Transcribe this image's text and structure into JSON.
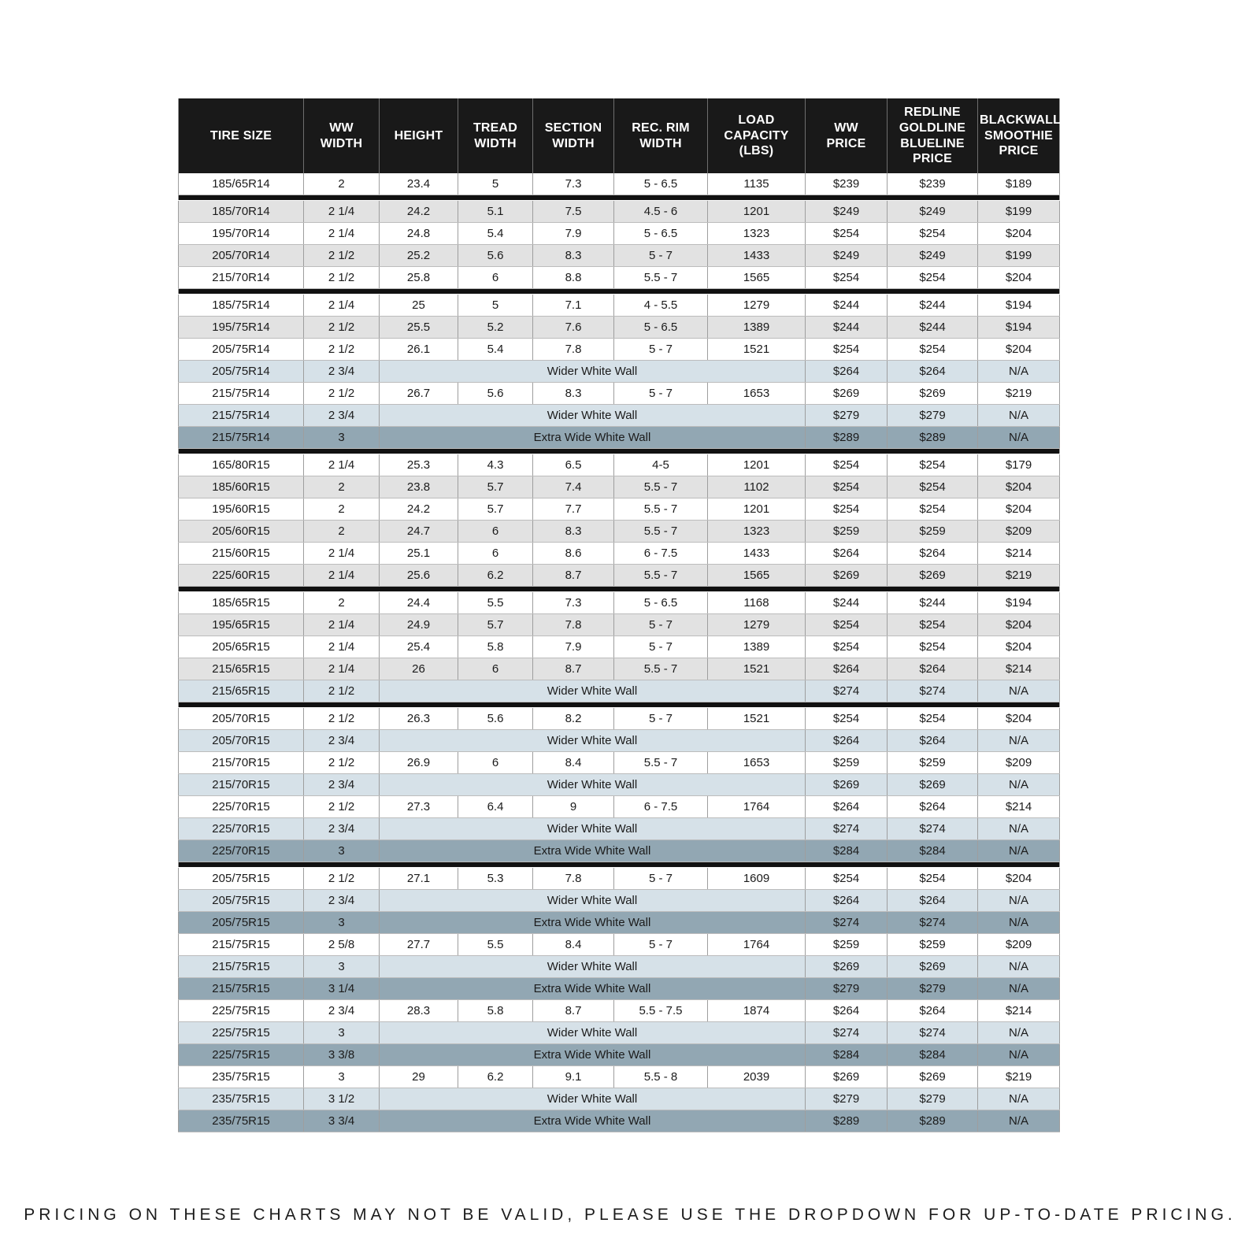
{
  "colors": {
    "header_bg": "#191919",
    "header_text": "#ffffff",
    "row_white": "#ffffff",
    "row_gray": "#e2e2e2",
    "row_wider_white_wall": "#d6e1e8",
    "row_extra_wide_white_wall": "#92a7b3",
    "section_divider": "#111111",
    "grid_line": "#9e9e9e"
  },
  "footer": {
    "note": "PRICING ON THESE CHARTS MAY NOT BE VALID, PLEASE USE THE DROPDOWN FOR UP-TO-DATE PRICING."
  },
  "table": {
    "columns": [
      {
        "id": "tire-size",
        "lines": [
          "TIRE SIZE"
        ]
      },
      {
        "id": "ww-width",
        "lines": [
          "WW",
          "WIDTH"
        ]
      },
      {
        "id": "height",
        "lines": [
          "HEIGHT"
        ]
      },
      {
        "id": "tread-width",
        "lines": [
          "TREAD",
          "WIDTH"
        ]
      },
      {
        "id": "section-width",
        "lines": [
          "SECTION",
          "WIDTH"
        ]
      },
      {
        "id": "rec-rim-width",
        "lines": [
          "REC. RIM",
          "WIDTH"
        ]
      },
      {
        "id": "load-capacity",
        "lines": [
          "LOAD",
          "CAPACITY",
          "(LBS)"
        ]
      },
      {
        "id": "ww-price",
        "lines": [
          "WW",
          "PRICE"
        ]
      },
      {
        "id": "redline-price",
        "lines": [
          "REDLINE",
          "GOLDLINE",
          "BLUELINE",
          "PRICE"
        ]
      },
      {
        "id": "blackwall-price",
        "lines": [
          "BLACKWALL",
          "SMOOTHIE",
          "PRICE"
        ]
      }
    ],
    "sections": [
      {
        "rows": [
          {
            "shade": "white",
            "tire_size": "185/65R14",
            "ww_width": "2",
            "height": "23.4",
            "tread_width": "5",
            "section_width": "7.3",
            "rec_rim_width": "5 - 6.5",
            "load_capacity": "1135",
            "ww_price": "$239",
            "redline_price": "$239",
            "blackwall_price": "$189"
          }
        ]
      },
      {
        "rows": [
          {
            "shade": "gray",
            "tire_size": "185/70R14",
            "ww_width": "2 1/4",
            "height": "24.2",
            "tread_width": "5.1",
            "section_width": "7.5",
            "rec_rim_width": "4.5 - 6",
            "load_capacity": "1201",
            "ww_price": "$249",
            "redline_price": "$249",
            "blackwall_price": "$199"
          },
          {
            "shade": "white",
            "tire_size": "195/70R14",
            "ww_width": "2 1/4",
            "height": "24.8",
            "tread_width": "5.4",
            "section_width": "7.9",
            "rec_rim_width": "5 - 6.5",
            "load_capacity": "1323",
            "ww_price": "$254",
            "redline_price": "$254",
            "blackwall_price": "$204"
          },
          {
            "shade": "gray",
            "tire_size": "205/70R14",
            "ww_width": "2 1/2",
            "height": "25.2",
            "tread_width": "5.6",
            "section_width": "8.3",
            "rec_rim_width": "5 - 7",
            "load_capacity": "1433",
            "ww_price": "$249",
            "redline_price": "$249",
            "blackwall_price": "$199"
          },
          {
            "shade": "white",
            "tire_size": "215/70R14",
            "ww_width": "2 1/2",
            "height": "25.8",
            "tread_width": "6",
            "section_width": "8.8",
            "rec_rim_width": "5.5 - 7",
            "load_capacity": "1565",
            "ww_price": "$254",
            "redline_price": "$254",
            "blackwall_price": "$204"
          }
        ]
      },
      {
        "rows": [
          {
            "shade": "white",
            "tire_size": "185/75R14",
            "ww_width": "2 1/4",
            "height": "25",
            "tread_width": "5",
            "section_width": "7.1",
            "rec_rim_width": "4 - 5.5",
            "load_capacity": "1279",
            "ww_price": "$244",
            "redline_price": "$244",
            "blackwall_price": "$194"
          },
          {
            "shade": "gray",
            "tire_size": "195/75R14",
            "ww_width": "2 1/2",
            "height": "25.5",
            "tread_width": "5.2",
            "section_width": "7.6",
            "rec_rim_width": "5 - 6.5",
            "load_capacity": "1389",
            "ww_price": "$244",
            "redline_price": "$244",
            "blackwall_price": "$194"
          },
          {
            "shade": "white",
            "tire_size": "205/75R14",
            "ww_width": "2 1/2",
            "height": "26.1",
            "tread_width": "5.4",
            "section_width": "7.8",
            "rec_rim_width": "5 - 7",
            "load_capacity": "1521",
            "ww_price": "$254",
            "redline_price": "$254",
            "blackwall_price": "$204"
          },
          {
            "shade": "wide",
            "tire_size": "205/75R14",
            "ww_width": "2 3/4",
            "label": "Wider White Wall",
            "ww_price": "$264",
            "redline_price": "$264",
            "blackwall_price": "N/A"
          },
          {
            "shade": "white",
            "tire_size": "215/75R14",
            "ww_width": "2 1/2",
            "height": "26.7",
            "tread_width": "5.6",
            "section_width": "8.3",
            "rec_rim_width": "5 - 7",
            "load_capacity": "1653",
            "ww_price": "$269",
            "redline_price": "$269",
            "blackwall_price": "$219"
          },
          {
            "shade": "wide",
            "tire_size": "215/75R14",
            "ww_width": "2 3/4",
            "label": "Wider White Wall",
            "ww_price": "$279",
            "redline_price": "$279",
            "blackwall_price": "N/A"
          },
          {
            "shade": "xwide",
            "tire_size": "215/75R14",
            "ww_width": "3",
            "label": "Extra Wide White Wall",
            "ww_price": "$289",
            "redline_price": "$289",
            "blackwall_price": "N/A"
          }
        ]
      },
      {
        "rows": [
          {
            "shade": "white",
            "tire_size": "165/80R15",
            "ww_width": "2 1/4",
            "height": "25.3",
            "tread_width": "4.3",
            "section_width": "6.5",
            "rec_rim_width": "4-5",
            "load_capacity": "1201",
            "ww_price": "$254",
            "redline_price": "$254",
            "blackwall_price": "$179"
          },
          {
            "shade": "gray",
            "tire_size": "185/60R15",
            "ww_width": "2",
            "height": "23.8",
            "tread_width": "5.7",
            "section_width": "7.4",
            "rec_rim_width": "5.5 - 7",
            "load_capacity": "1102",
            "ww_price": "$254",
            "redline_price": "$254",
            "blackwall_price": "$204"
          },
          {
            "shade": "white",
            "tire_size": "195/60R15",
            "ww_width": "2",
            "height": "24.2",
            "tread_width": "5.7",
            "section_width": "7.7",
            "rec_rim_width": "5.5 - 7",
            "load_capacity": "1201",
            "ww_price": "$254",
            "redline_price": "$254",
            "blackwall_price": "$204"
          },
          {
            "shade": "gray",
            "tire_size": "205/60R15",
            "ww_width": "2",
            "height": "24.7",
            "tread_width": "6",
            "section_width": "8.3",
            "rec_rim_width": "5.5 - 7",
            "load_capacity": "1323",
            "ww_price": "$259",
            "redline_price": "$259",
            "blackwall_price": "$209"
          },
          {
            "shade": "white",
            "tire_size": "215/60R15",
            "ww_width": "2 1/4",
            "height": "25.1",
            "tread_width": "6",
            "section_width": "8.6",
            "rec_rim_width": "6 - 7.5",
            "load_capacity": "1433",
            "ww_price": "$264",
            "redline_price": "$264",
            "blackwall_price": "$214"
          },
          {
            "shade": "gray",
            "tire_size": "225/60R15",
            "ww_width": "2 1/4",
            "height": "25.6",
            "tread_width": "6.2",
            "section_width": "8.7",
            "rec_rim_width": "5.5 - 7",
            "load_capacity": "1565",
            "ww_price": "$269",
            "redline_price": "$269",
            "blackwall_price": "$219"
          }
        ]
      },
      {
        "rows": [
          {
            "shade": "white",
            "tire_size": "185/65R15",
            "ww_width": "2",
            "height": "24.4",
            "tread_width": "5.5",
            "section_width": "7.3",
            "rec_rim_width": "5 - 6.5",
            "load_capacity": "1168",
            "ww_price": "$244",
            "redline_price": "$244",
            "blackwall_price": "$194"
          },
          {
            "shade": "gray",
            "tire_size": "195/65R15",
            "ww_width": "2 1/4",
            "height": "24.9",
            "tread_width": "5.7",
            "section_width": "7.8",
            "rec_rim_width": "5 - 7",
            "load_capacity": "1279",
            "ww_price": "$254",
            "redline_price": "$254",
            "blackwall_price": "$204"
          },
          {
            "shade": "white",
            "tire_size": "205/65R15",
            "ww_width": "2 1/4",
            "height": "25.4",
            "tread_width": "5.8",
            "section_width": "7.9",
            "rec_rim_width": "5 - 7",
            "load_capacity": "1389",
            "ww_price": "$254",
            "redline_price": "$254",
            "blackwall_price": "$204"
          },
          {
            "shade": "gray",
            "tire_size": "215/65R15",
            "ww_width": "2 1/4",
            "height": "26",
            "tread_width": "6",
            "section_width": "8.7",
            "rec_rim_width": "5.5 - 7",
            "load_capacity": "1521",
            "ww_price": "$264",
            "redline_price": "$264",
            "blackwall_price": "$214"
          },
          {
            "shade": "wide",
            "tire_size": "215/65R15",
            "ww_width": "2 1/2",
            "label": "Wider White Wall",
            "ww_price": "$274",
            "redline_price": "$274",
            "blackwall_price": "N/A"
          }
        ]
      },
      {
        "rows": [
          {
            "shade": "white",
            "tire_size": "205/70R15",
            "ww_width": "2 1/2",
            "height": "26.3",
            "tread_width": "5.6",
            "section_width": "8.2",
            "rec_rim_width": "5 - 7",
            "load_capacity": "1521",
            "ww_price": "$254",
            "redline_price": "$254",
            "blackwall_price": "$204"
          },
          {
            "shade": "wide",
            "tire_size": "205/70R15",
            "ww_width": "2 3/4",
            "label": "Wider White Wall",
            "ww_price": "$264",
            "redline_price": "$264",
            "blackwall_price": "N/A"
          },
          {
            "shade": "white",
            "tire_size": "215/70R15",
            "ww_width": "2 1/2",
            "height": "26.9",
            "tread_width": "6",
            "section_width": "8.4",
            "rec_rim_width": "5.5 - 7",
            "load_capacity": "1653",
            "ww_price": "$259",
            "redline_price": "$259",
            "blackwall_price": "$209"
          },
          {
            "shade": "wide",
            "tire_size": "215/70R15",
            "ww_width": "2 3/4",
            "label": "Wider White Wall",
            "ww_price": "$269",
            "redline_price": "$269",
            "blackwall_price": "N/A"
          },
          {
            "shade": "white",
            "tire_size": "225/70R15",
            "ww_width": "2 1/2",
            "height": "27.3",
            "tread_width": "6.4",
            "section_width": "9",
            "rec_rim_width": "6 - 7.5",
            "load_capacity": "1764",
            "ww_price": "$264",
            "redline_price": "$264",
            "blackwall_price": "$214"
          },
          {
            "shade": "wide",
            "tire_size": "225/70R15",
            "ww_width": "2 3/4",
            "label": "Wider White Wall",
            "ww_price": "$274",
            "redline_price": "$274",
            "blackwall_price": "N/A"
          },
          {
            "shade": "xwide",
            "tire_size": "225/70R15",
            "ww_width": "3",
            "label": "Extra Wide White Wall",
            "ww_price": "$284",
            "redline_price": "$284",
            "blackwall_price": "N/A"
          }
        ]
      },
      {
        "rows": [
          {
            "shade": "white",
            "tire_size": "205/75R15",
            "ww_width": "2 1/2",
            "height": "27.1",
            "tread_width": "5.3",
            "section_width": "7.8",
            "rec_rim_width": "5 - 7",
            "load_capacity": "1609",
            "ww_price": "$254",
            "redline_price": "$254",
            "blackwall_price": "$204"
          },
          {
            "shade": "wide",
            "tire_size": "205/75R15",
            "ww_width": "2 3/4",
            "label": "Wider White Wall",
            "ww_price": "$264",
            "redline_price": "$264",
            "blackwall_price": "N/A"
          },
          {
            "shade": "xwide",
            "tire_size": "205/75R15",
            "ww_width": "3",
            "label": "Extra Wide White Wall",
            "ww_price": "$274",
            "redline_price": "$274",
            "blackwall_price": "N/A"
          },
          {
            "shade": "white",
            "tire_size": "215/75R15",
            "ww_width": "2 5/8",
            "height": "27.7",
            "tread_width": "5.5",
            "section_width": "8.4",
            "rec_rim_width": "5 - 7",
            "load_capacity": "1764",
            "ww_price": "$259",
            "redline_price": "$259",
            "blackwall_price": "$209"
          },
          {
            "shade": "wide",
            "tire_size": "215/75R15",
            "ww_width": "3",
            "label": "Wider White Wall",
            "ww_price": "$269",
            "redline_price": "$269",
            "blackwall_price": "N/A"
          },
          {
            "shade": "xwide",
            "tire_size": "215/75R15",
            "ww_width": "3 1/4",
            "label": "Extra Wide White Wall",
            "ww_price": "$279",
            "redline_price": "$279",
            "blackwall_price": "N/A"
          },
          {
            "shade": "white",
            "tire_size": "225/75R15",
            "ww_width": "2 3/4",
            "height": "28.3",
            "tread_width": "5.8",
            "section_width": "8.7",
            "rec_rim_width": "5.5 - 7.5",
            "load_capacity": "1874",
            "ww_price": "$264",
            "redline_price": "$264",
            "blackwall_price": "$214"
          },
          {
            "shade": "wide",
            "tire_size": "225/75R15",
            "ww_width": "3",
            "label": "Wider White Wall",
            "ww_price": "$274",
            "redline_price": "$274",
            "blackwall_price": "N/A"
          },
          {
            "shade": "xwide",
            "tire_size": "225/75R15",
            "ww_width": "3 3/8",
            "label": "Extra Wide White Wall",
            "ww_price": "$284",
            "redline_price": "$284",
            "blackwall_price": "N/A"
          },
          {
            "shade": "white",
            "tire_size": "235/75R15",
            "ww_width": "3",
            "height": "29",
            "tread_width": "6.2",
            "section_width": "9.1",
            "rec_rim_width": "5.5 - 8",
            "load_capacity": "2039",
            "ww_price": "$269",
            "redline_price": "$269",
            "blackwall_price": "$219"
          },
          {
            "shade": "wide",
            "tire_size": "235/75R15",
            "ww_width": "3 1/2",
            "label": "Wider White Wall",
            "ww_price": "$279",
            "redline_price": "$279",
            "blackwall_price": "N/A"
          },
          {
            "shade": "xwide",
            "tire_size": "235/75R15",
            "ww_width": "3 3/4",
            "label": "Extra Wide White Wall",
            "ww_price": "$289",
            "redline_price": "$289",
            "blackwall_price": "N/A"
          }
        ]
      }
    ]
  }
}
